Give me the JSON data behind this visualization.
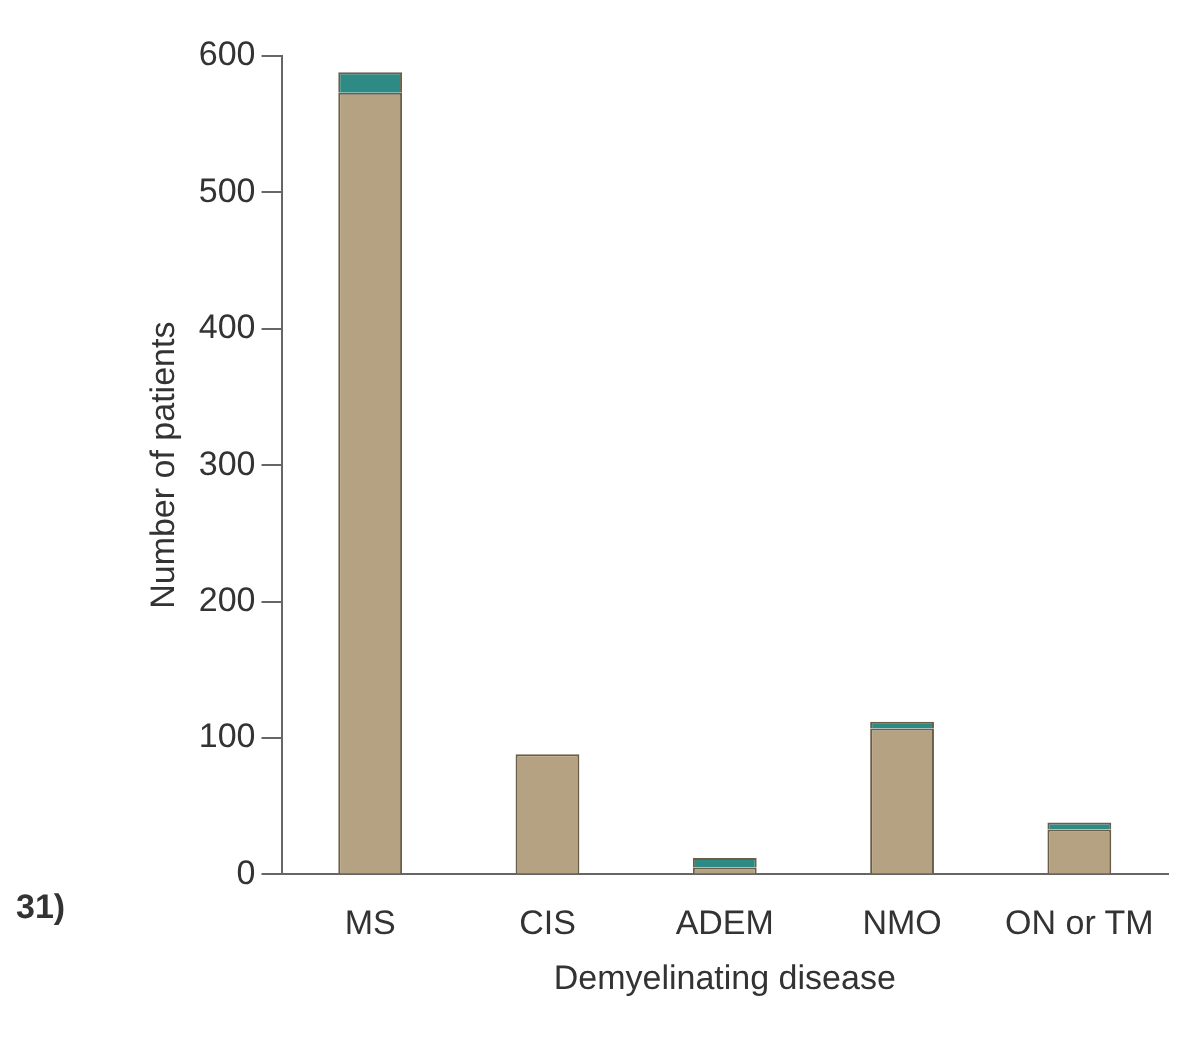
{
  "chart_data": {
    "type": "bar",
    "xlabel": "Demyelinating disease",
    "ylabel": "Number of patients",
    "categories": [
      "MS",
      "CIS",
      "ADEM",
      "NMO",
      "ON or TM"
    ],
    "stacked": true,
    "series": [
      {
        "color": "#b5a282",
        "values": [
          573,
          88,
          5,
          107,
          33
        ]
      },
      {
        "color": "#2e8a84",
        "values": [
          15,
          null,
          7,
          5,
          5
        ]
      }
    ],
    "ylim": [
      0,
      600
    ],
    "yticks": [
      0,
      100,
      200,
      300,
      400,
      500,
      600
    ],
    "grid": false,
    "legend": false,
    "annotations": [
      "31)"
    ]
  }
}
